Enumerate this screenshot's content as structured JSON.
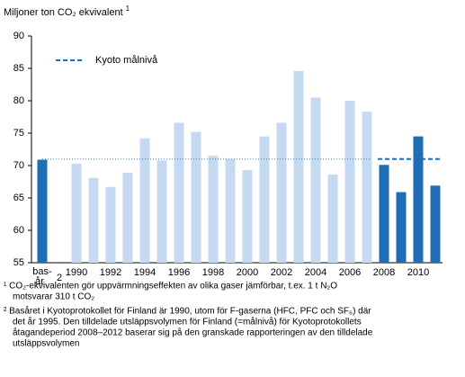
{
  "chart_data": {
    "type": "bar",
    "title": "Miljoner ton CO₂ ekvivalent",
    "title_note": "1",
    "categories": [
      "bas-år",
      "1990",
      null,
      "1992",
      null,
      "1994",
      null,
      "1996",
      null,
      "1998",
      null,
      "2000",
      null,
      "2002",
      null,
      "2004",
      null,
      "2006",
      null,
      "2008",
      null,
      "2010",
      null
    ],
    "category_note": "2",
    "values": [
      70.9,
      70.3,
      68.1,
      66.7,
      68.9,
      74.2,
      70.8,
      76.6,
      75.2,
      71.5,
      71.0,
      69.3,
      74.5,
      76.6,
      84.6,
      80.5,
      68.6,
      80.0,
      78.3,
      70.1,
      65.9,
      74.5,
      66.9
    ],
    "colors": [
      "#1f6eb5",
      "#c5d9f1",
      "#c5d9f1",
      "#c5d9f1",
      "#c5d9f1",
      "#c5d9f1",
      "#c5d9f1",
      "#c5d9f1",
      "#c5d9f1",
      "#c5d9f1",
      "#c5d9f1",
      "#c5d9f1",
      "#c5d9f1",
      "#c5d9f1",
      "#c5d9f1",
      "#c5d9f1",
      "#c5d9f1",
      "#c5d9f1",
      "#c5d9f1",
      "#1f6eb5",
      "#1f6eb5",
      "#1f6eb5",
      "#1f6eb5"
    ],
    "reference": {
      "name": "Kyoto målnivå",
      "value": 71.0,
      "color": "#1f6eb5"
    },
    "ylim": [
      55,
      90
    ],
    "yticks": [
      55,
      60,
      65,
      70,
      75,
      80,
      85,
      90
    ],
    "grid": false,
    "footnotes": [
      "¹ CO₂-ekvivalenten gör  uppvärmningseffekten av olika gaser jämförbar, t.ex. 1 t N₂O",
      "motsvarar 310 t CO₂",
      "² Basåret i Kyotoprotokollet för Finland är 1990, utom för F-gaserna (HFC, PFC och SF₆)   där",
      "det år 1995. Den tilldelade utsläppsvolymen för Finland (=målnivå)  för Kyotoprotokollets",
      "åtagandeperiod 2008–2012 baserar sig på den granskade rapporteringen av den tilldelade",
      "utsläppsvolymen"
    ]
  }
}
